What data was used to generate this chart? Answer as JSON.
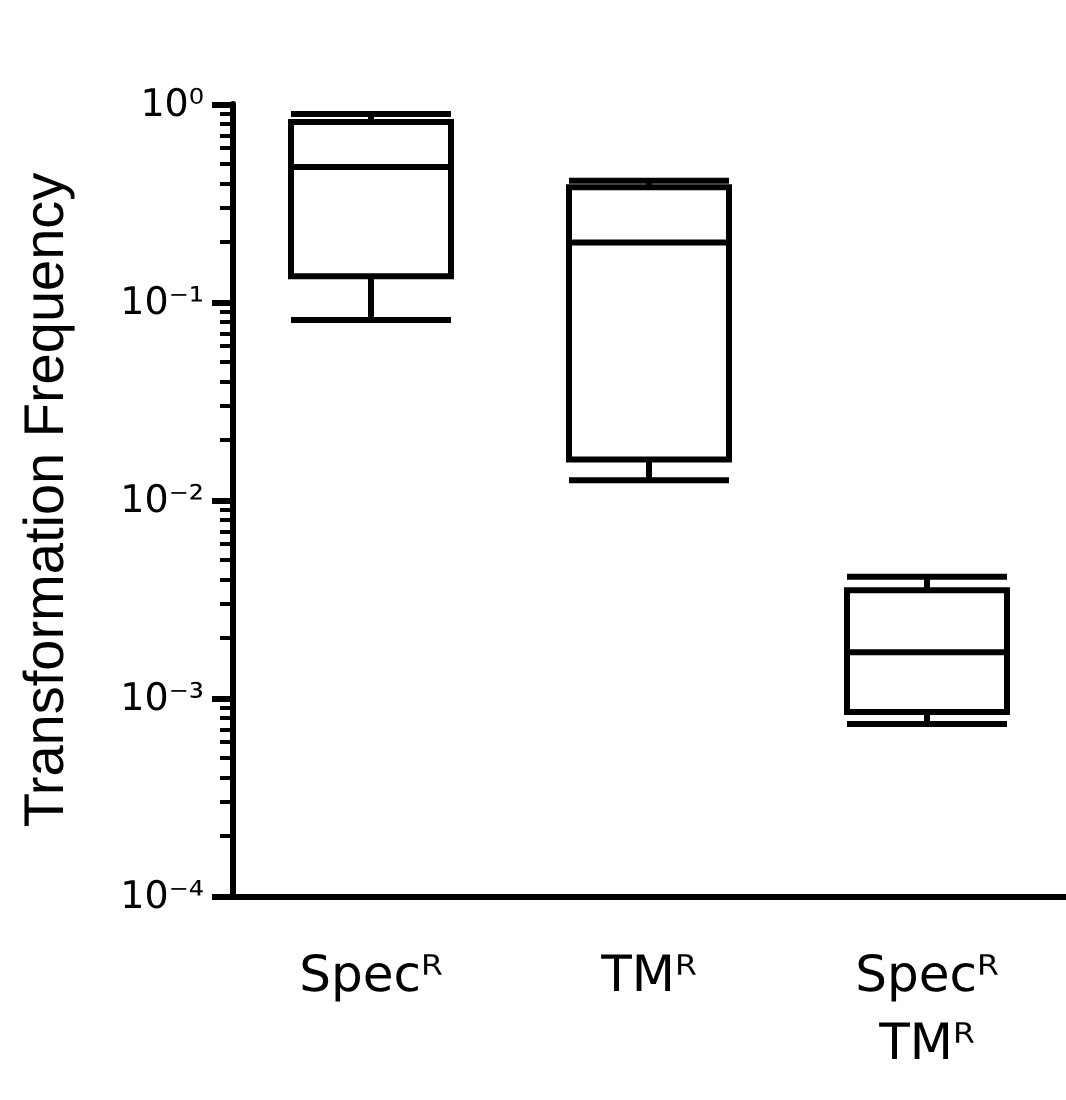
{
  "chart_data": {
    "type": "box",
    "ylabel": "Transformation Frequency",
    "categories": [
      "Specᴿ",
      "TMᴿ",
      "Specᴿ\nTMᴿ"
    ],
    "boxes": [
      {
        "low": 0.081,
        "q1": 0.135,
        "median": 0.48,
        "q3": 0.81,
        "high": 0.89
      },
      {
        "low": 0.0126,
        "q1": 0.016,
        "median": 0.2,
        "q3": 0.38,
        "high": 0.41
      },
      {
        "low": 0.00074,
        "q1": 0.00085,
        "median": 0.0017,
        "q3": 0.0035,
        "high": 0.0041
      }
    ],
    "color": "#000000",
    "log": true,
    "ylim": [
      0.0001,
      1
    ],
    "yticks": [
      {
        "value": 0.0001,
        "label": "10⁻⁴"
      },
      {
        "value": 0.001,
        "label": "10⁻³"
      },
      {
        "value": 0.01,
        "label": "10⁻²"
      },
      {
        "value": 0.1,
        "label": "10⁻¹"
      },
      {
        "value": 1,
        "label": "10⁰"
      }
    ],
    "grid": false
  }
}
